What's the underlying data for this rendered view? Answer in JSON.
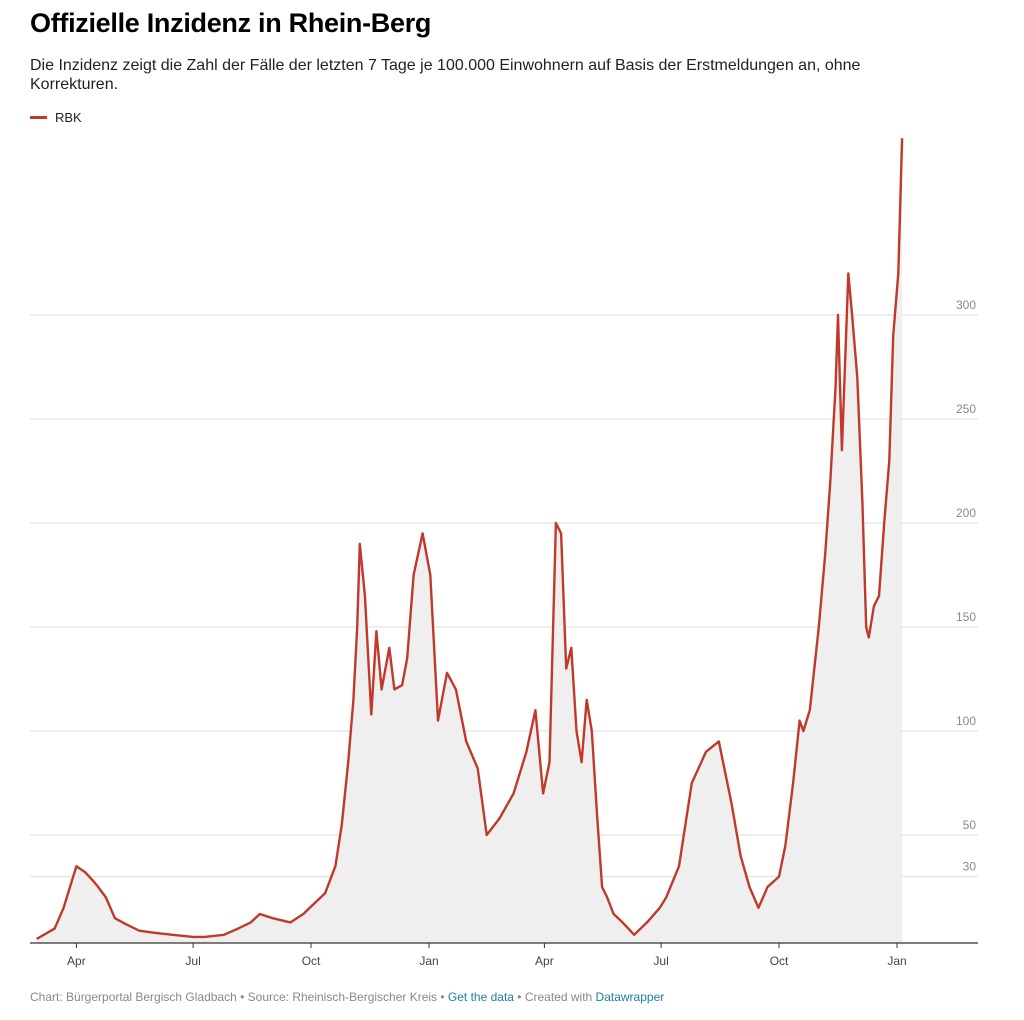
{
  "header": {
    "title": "Offizielle Inzidenz in Rhein-Berg",
    "subtitle": "Die Inzidenz zeigt die Zahl der Fälle der letzten 7 Tage je 100.000 Einwohnern auf Basis der Erstmeldungen an, ohne Korrekturen."
  },
  "legend": {
    "label": "RBK"
  },
  "footer": {
    "prefix": "Chart: Bürgerportal Bergisch Gladbach • Source: Rheinisch-Bergischer Kreis • ",
    "get_data": "Get the data",
    "middle": " • Created with ",
    "tool": "Datawrapper"
  },
  "colors": {
    "line": "#c0392b",
    "fill": "#efefef",
    "grid": "#dddddd",
    "axis": "#333333",
    "tick_label": "#888888"
  },
  "chart_data": {
    "type": "area",
    "series": [
      {
        "name": "RBK",
        "x": [
          "2020-03-01",
          "2020-03-15",
          "2020-03-22",
          "2020-03-27",
          "2020-04-01",
          "2020-04-08",
          "2020-04-14",
          "2020-04-18",
          "2020-04-24",
          "2020-05-01",
          "2020-05-10",
          "2020-05-20",
          "2020-06-01",
          "2020-06-15",
          "2020-07-01",
          "2020-07-10",
          "2020-07-25",
          "2020-08-05",
          "2020-08-15",
          "2020-08-22",
          "2020-09-01",
          "2020-09-15",
          "2020-09-25",
          "2020-10-05",
          "2020-10-12",
          "2020-10-20",
          "2020-10-25",
          "2020-10-30",
          "2020-11-03",
          "2020-11-06",
          "2020-11-08",
          "2020-11-12",
          "2020-11-17",
          "2020-11-21",
          "2020-11-25",
          "2020-12-01",
          "2020-12-05",
          "2020-12-11",
          "2020-12-15",
          "2020-12-20",
          "2020-12-27",
          "2021-01-02",
          "2021-01-08",
          "2021-01-15",
          "2021-01-22",
          "2021-01-30",
          "2021-02-08",
          "2021-02-15",
          "2021-02-25",
          "2021-03-08",
          "2021-03-18",
          "2021-03-25",
          "2021-03-31",
          "2021-04-05",
          "2021-04-10",
          "2021-04-14",
          "2021-04-18",
          "2021-04-22",
          "2021-04-26",
          "2021-04-30",
          "2021-05-04",
          "2021-05-08",
          "2021-05-12",
          "2021-05-16",
          "2021-05-20",
          "2021-05-25",
          "2021-06-01",
          "2021-06-10",
          "2021-06-20",
          "2021-06-30",
          "2021-07-05",
          "2021-07-15",
          "2021-07-25",
          "2021-08-05",
          "2021-08-15",
          "2021-08-25",
          "2021-09-01",
          "2021-09-08",
          "2021-09-15",
          "2021-09-22",
          "2021-10-01",
          "2021-10-06",
          "2021-10-12",
          "2021-10-17",
          "2021-10-20",
          "2021-10-25",
          "2021-11-01",
          "2021-11-06",
          "2021-11-10",
          "2021-11-14",
          "2021-11-16",
          "2021-11-19",
          "2021-11-22",
          "2021-11-24",
          "2021-11-27",
          "2021-12-01",
          "2021-12-05",
          "2021-12-08",
          "2021-12-10",
          "2021-12-14",
          "2021-12-18",
          "2021-12-22",
          "2021-12-26",
          "2021-12-29",
          "2022-01-02",
          "2022-01-05"
        ],
        "y": [
          0,
          5,
          15,
          25,
          35,
          32,
          28,
          25,
          20,
          10,
          7,
          4,
          3,
          2,
          1,
          1,
          2,
          5,
          8,
          12,
          10,
          8,
          12,
          18,
          22,
          35,
          55,
          85,
          115,
          150,
          190,
          165,
          108,
          148,
          120,
          140,
          120,
          122,
          135,
          175,
          195,
          175,
          105,
          128,
          120,
          95,
          82,
          50,
          58,
          70,
          90,
          110,
          70,
          85,
          200,
          195,
          130,
          140,
          100,
          85,
          115,
          100,
          60,
          25,
          20,
          12,
          8,
          2,
          8,
          15,
          20,
          35,
          75,
          90,
          95,
          65,
          40,
          25,
          15,
          25,
          30,
          45,
          75,
          105,
          100,
          110,
          150,
          185,
          220,
          265,
          300,
          235,
          285,
          320,
          300,
          270,
          210,
          150,
          145,
          160,
          165,
          200,
          230,
          290,
          320,
          385
        ]
      }
    ],
    "ylim": [
      0,
      385
    ],
    "y_ticks": [
      30,
      50,
      100,
      150,
      200,
      250,
      300
    ],
    "x_ticks": [
      {
        "label": "Apr",
        "date": "2020-04-01"
      },
      {
        "label": "Jul",
        "date": "2020-07-01"
      },
      {
        "label": "Oct",
        "date": "2020-10-01"
      },
      {
        "label": "Jan",
        "date": "2021-01-01"
      },
      {
        "label": "Apr",
        "date": "2021-04-01"
      },
      {
        "label": "Jul",
        "date": "2021-07-01"
      },
      {
        "label": "Oct",
        "date": "2021-10-01"
      },
      {
        "label": "Jan",
        "date": "2022-01-01"
      }
    ],
    "grid": "horizontal"
  }
}
